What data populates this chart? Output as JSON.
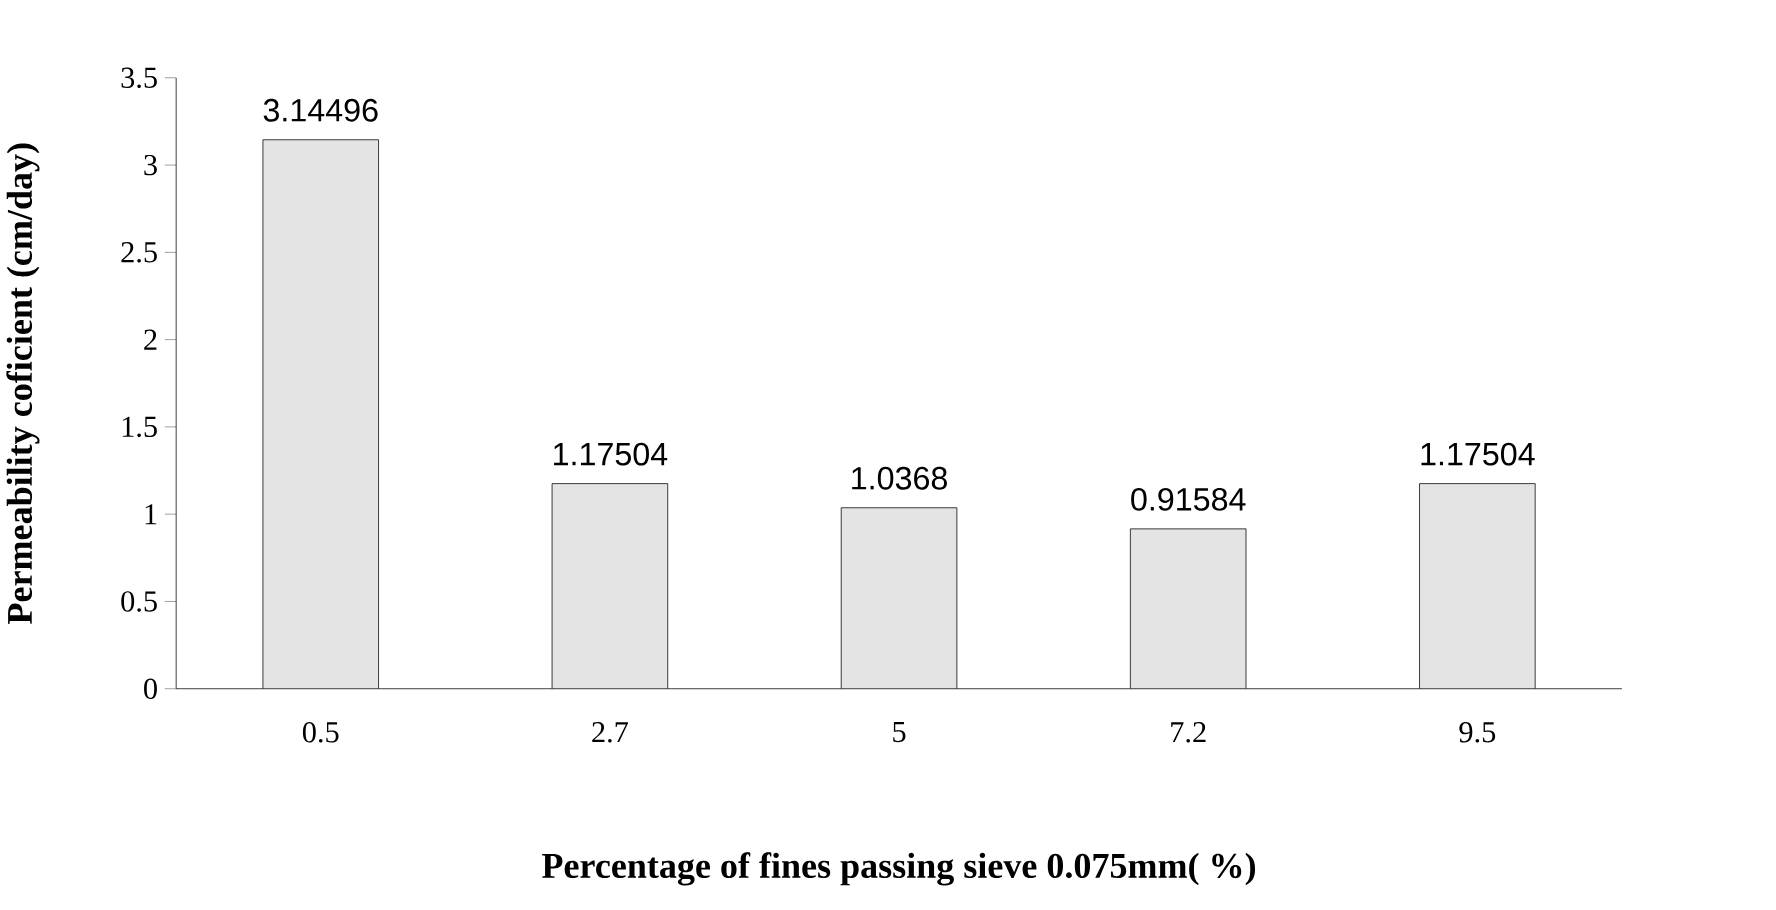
{
  "chart_data": {
    "type": "bar",
    "xlabel": "Percentage of fines passing sieve 0.075mm( %)",
    "ylabel": "Permeability coficient (cm/day)",
    "categories": [
      "0.5",
      "2.7",
      "5",
      "7.2",
      "9.5"
    ],
    "values": [
      3.14496,
      1.17504,
      1.0368,
      0.91584,
      1.17504
    ],
    "color": "#e4e4e4",
    "ylim": [
      0,
      3.5
    ],
    "yticks": [
      0,
      0.5,
      1,
      1.5,
      2,
      2.5,
      3,
      3.5
    ],
    "data_labels": true
  }
}
